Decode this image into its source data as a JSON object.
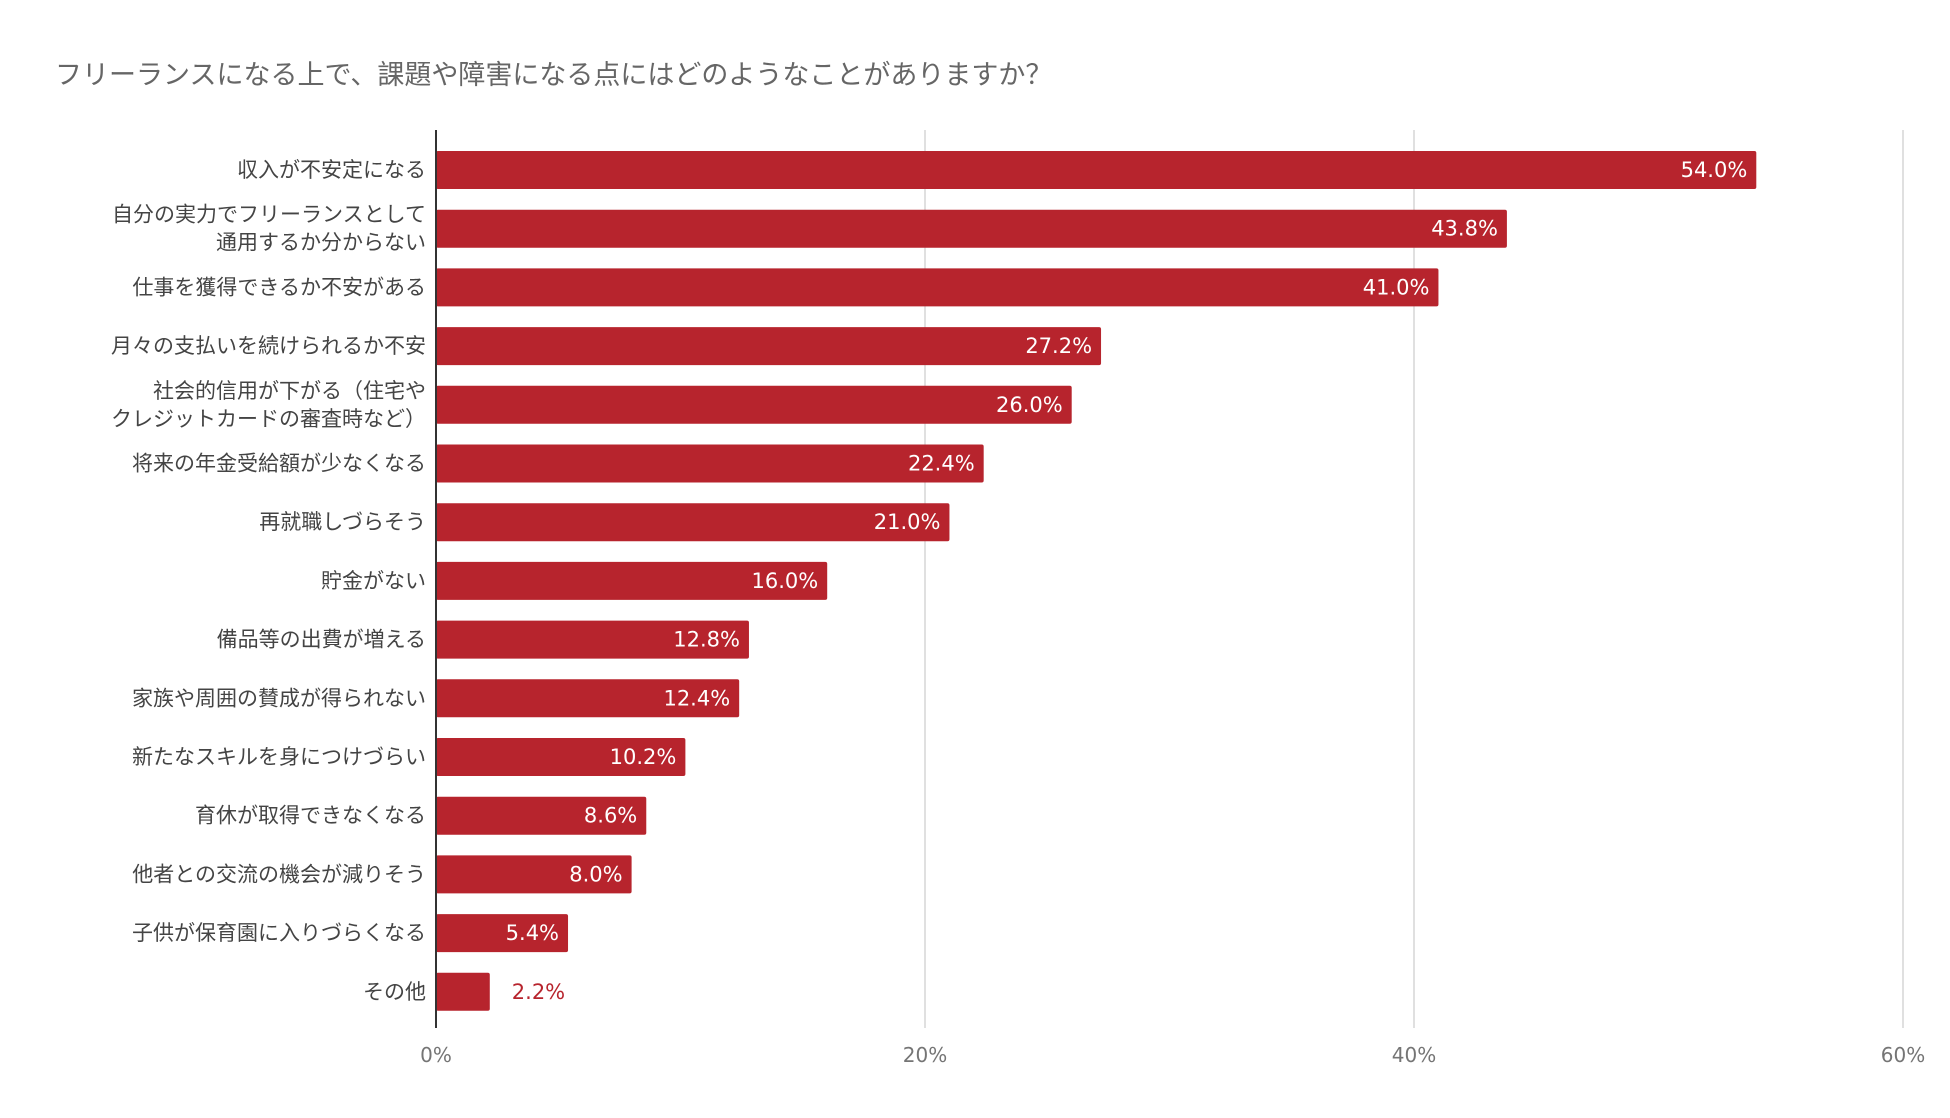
{
  "chart_data": {
    "type": "bar",
    "orientation": "horizontal",
    "title": "フリーランスになる上で、課題や障害になる点にはどのようなことがありますか？",
    "categories": [
      [
        "収入が不安定になる"
      ],
      [
        "自分の実力でフリーランスとして",
        "通用するか分からない"
      ],
      [
        "仕事を獲得できるか不安がある"
      ],
      [
        "月々の支払いを続けられるか不安"
      ],
      [
        "社会的信用が下がる（住宅や",
        "クレジットカードの審査時など）"
      ],
      [
        "将来の年金受給額が少なくなる"
      ],
      [
        "再就職しづらそう"
      ],
      [
        "貯金がない"
      ],
      [
        "備品等の出費が増える"
      ],
      [
        "家族や周囲の賛成が得られない"
      ],
      [
        "新たなスキルを身につけづらい"
      ],
      [
        "育休が取得できなくなる"
      ],
      [
        "他者との交流の機会が減りそう"
      ],
      [
        "子供が保育園に入りづらくなる"
      ],
      [
        "その他"
      ]
    ],
    "values": [
      54.0,
      43.8,
      41.0,
      27.2,
      26.0,
      22.4,
      21.0,
      16.0,
      12.8,
      12.4,
      10.2,
      8.6,
      8.0,
      5.4,
      2.2
    ],
    "value_labels": [
      "54.0%",
      "43.8%",
      "41.0%",
      "27.2%",
      "26.0%",
      "22.4%",
      "21.0%",
      "16.0%",
      "12.8%",
      "12.4%",
      "10.2%",
      "8.6%",
      "8.0%",
      "5.4%",
      "2.2%"
    ],
    "xlim": [
      0,
      60
    ],
    "xticks": [
      0,
      20,
      40,
      60
    ],
    "xtick_labels": [
      "0%",
      "20%",
      "40%",
      "60%"
    ],
    "grid": true,
    "legend": "none",
    "bar_color": "#b7242d",
    "label_inside_color": "#ffffff"
  }
}
